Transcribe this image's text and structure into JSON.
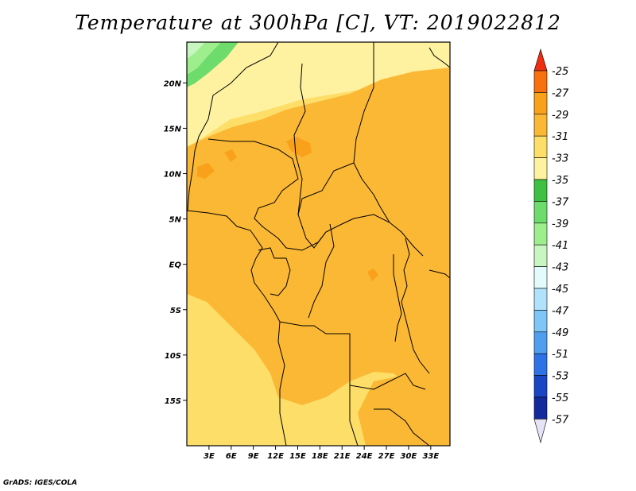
{
  "title": "Temperature at 300hPa [C], VT: 2019022812",
  "credit": "GrADS: IGES/COLA",
  "map": {
    "lon_range": [
      0,
      35.6
    ],
    "lat_range": [
      -20,
      24.5
    ],
    "x_ticks": [
      "3E",
      "6E",
      "9E",
      "12E",
      "15E",
      "18E",
      "21E",
      "24E",
      "27E",
      "30E",
      "33E"
    ],
    "x_tick_lons": [
      3,
      6,
      9,
      12,
      15,
      18,
      21,
      24,
      27,
      30,
      33
    ],
    "y_ticks": [
      "20N",
      "15N",
      "10N",
      "5N",
      "EQ",
      "5S",
      "10S",
      "15S"
    ],
    "y_tick_lats": [
      20,
      15,
      10,
      5,
      0,
      -5,
      -10,
      -15
    ]
  },
  "colorbar": {
    "labels": [
      "-25",
      "-27",
      "-29",
      "-31",
      "-33",
      "-35",
      "-37",
      "-39",
      "-41",
      "-43",
      "-45",
      "-47",
      "-49",
      "-51",
      "-53",
      "-55",
      "-57"
    ],
    "colors": [
      "#ee2e10",
      "#f9700f",
      "#f9a11b",
      "#fbb835",
      "#fdde69",
      "#fef2a1",
      "#3ec043",
      "#6ddc6c",
      "#9fee8e",
      "#c8f6c0",
      "#e4fbfe",
      "#b1e2fb",
      "#7ec6f7",
      "#509ef0",
      "#2e72e8",
      "#1846c5",
      "#132a9c",
      "#0c0f66"
    ]
  }
}
